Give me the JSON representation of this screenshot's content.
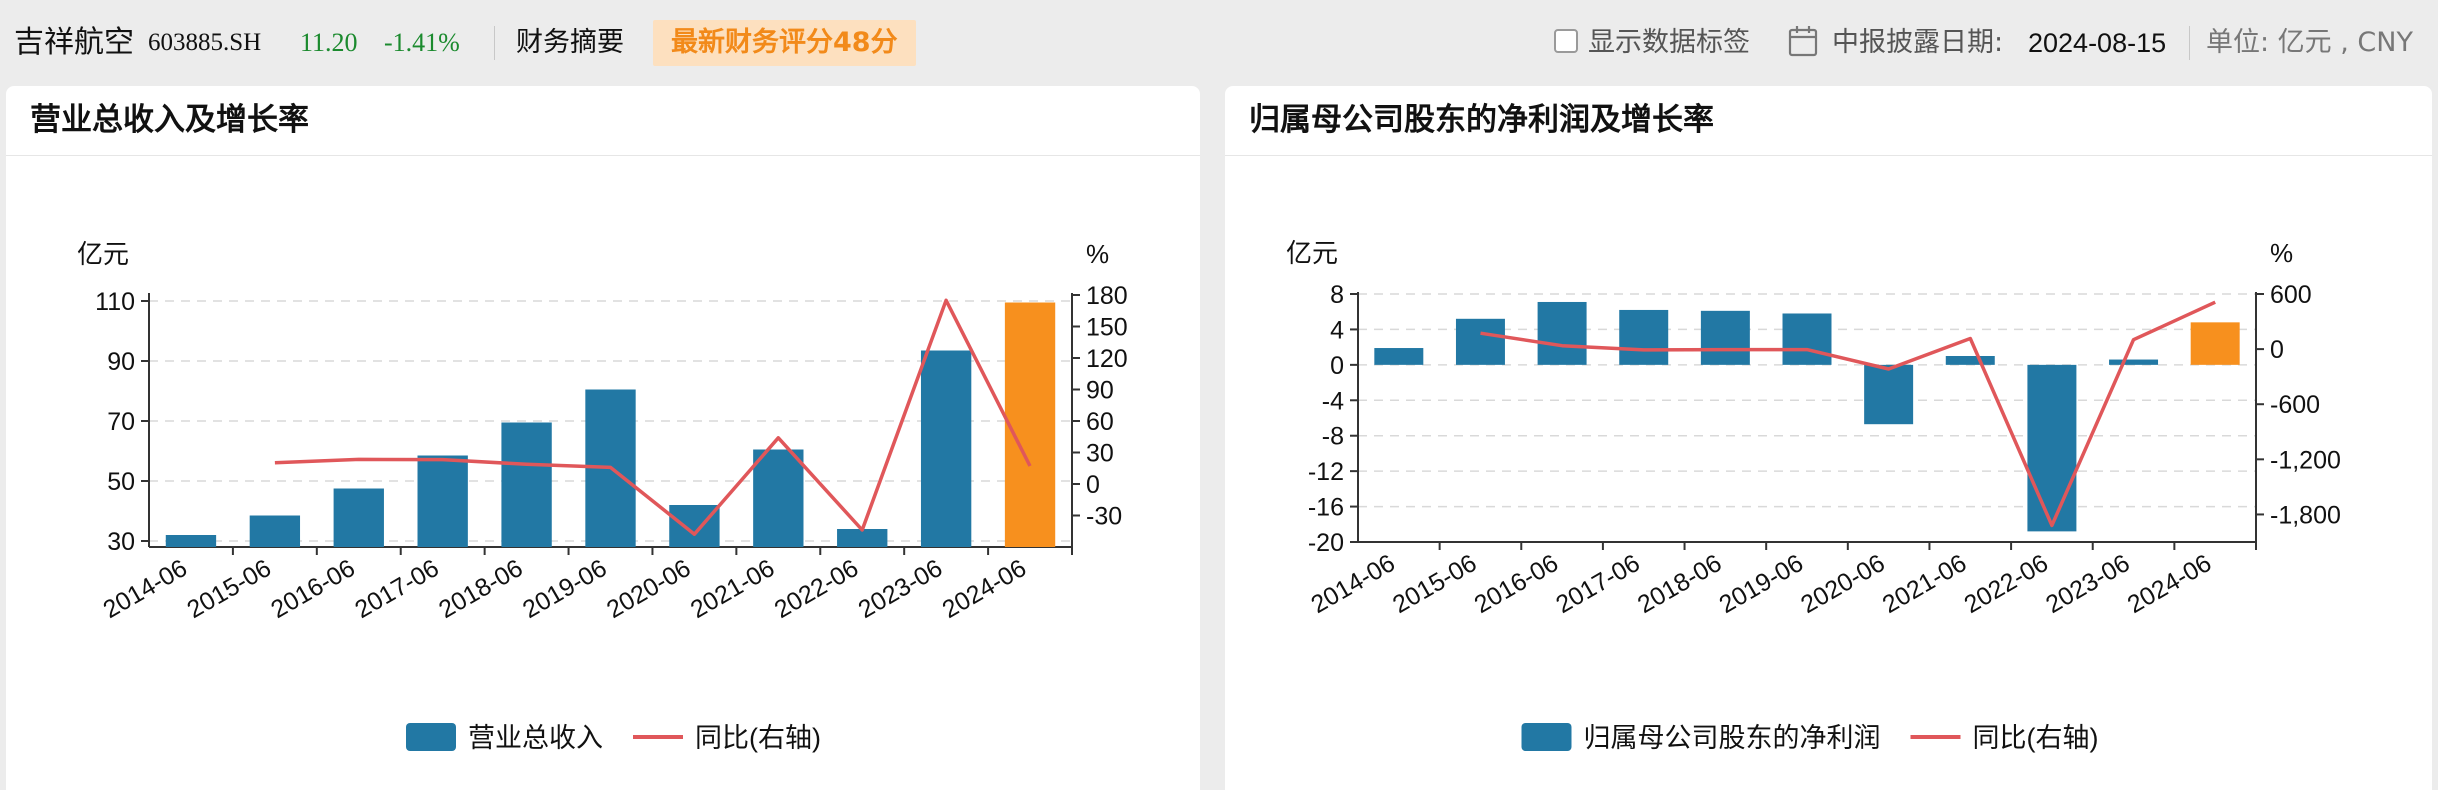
{
  "header": {
    "stock_name": "吉祥航空",
    "stock_code": "603885.SH",
    "price": "11.20",
    "change": "-1.41%",
    "section": "财务摘要",
    "rating": "最新财务评分48分",
    "show_labels": "显示数据标签",
    "period_label": "中报披露日期:",
    "period_date": "2024-08-15",
    "unit": "单位: 亿元 , CNY"
  },
  "colors": {
    "bar": "#2278a4",
    "bar_highlight": "#f7901e",
    "line": "#e0575a",
    "grid": "#d9d9d9",
    "axis": "#333333"
  },
  "panels": [
    {
      "title": "营业总收入及增长率",
      "chart_data": {
        "type": "bar",
        "categories": [
          "2014-06",
          "2015-06",
          "2016-06",
          "2017-06",
          "2018-06",
          "2019-06",
          "2020-06",
          "2021-06",
          "2022-06",
          "2023-06",
          "2024-06"
        ],
        "series": [
          {
            "name": "营业总收入",
            "type": "bar",
            "axis": "left",
            "values": [
              32.0,
              38.5,
              47.5,
              58.5,
              69.5,
              80.5,
              42.0,
              60.5,
              34.0,
              93.5,
              109.5
            ]
          },
          {
            "name": "同比(右轴)",
            "type": "line",
            "axis": "right",
            "values": [
              null,
              20.3,
              23.4,
              23.2,
              18.8,
              15.8,
              -47.8,
              44.0,
              -43.8,
              175.0,
              17.1
            ]
          }
        ],
        "y_left": {
          "label": "亿元",
          "range": [
            28,
            112
          ],
          "ticks": [
            30,
            50,
            70,
            90,
            110
          ]
        },
        "y_right": {
          "label": "%",
          "range": [
            -60,
            180
          ],
          "ticks": [
            -30,
            0,
            30,
            60,
            90,
            120,
            150,
            180
          ]
        },
        "highlight_last_bar": true,
        "grid": true,
        "legend": "bottom-center"
      }
    },
    {
      "title": "归属母公司股东的净利润及增长率",
      "chart_data": {
        "type": "bar",
        "categories": [
          "2014-06",
          "2015-06",
          "2016-06",
          "2017-06",
          "2018-06",
          "2019-06",
          "2020-06",
          "2021-06",
          "2022-06",
          "2023-06",
          "2024-06"
        ],
        "series": [
          {
            "name": "归属母公司股东的净利润",
            "type": "bar",
            "axis": "left",
            "values": [
              1.9,
              5.2,
              7.1,
              6.2,
              6.1,
              5.8,
              -6.7,
              1.0,
              -18.8,
              0.6,
              4.8
            ]
          },
          {
            "name": "同比(右轴)",
            "type": "line",
            "axis": "right",
            "values": [
              null,
              173,
              37,
              -9,
              -5,
              -5,
              -216,
              115,
              -1919,
              103,
              511
            ]
          }
        ],
        "y_left": {
          "label": "亿元",
          "range": [
            -20,
            8
          ],
          "ticks": [
            -20,
            -16,
            -12,
            -8,
            -4,
            0,
            4,
            8
          ]
        },
        "y_right": {
          "label": "%",
          "range": [
            -2100,
            600
          ],
          "ticks": [
            -1800,
            -1200,
            -600,
            0,
            600
          ]
        },
        "y_right_tick_labels": [
          "-1,800",
          "-1,200",
          "-600",
          "0",
          "600"
        ],
        "highlight_last_bar": true,
        "grid": true,
        "legend": "bottom-center"
      }
    }
  ]
}
